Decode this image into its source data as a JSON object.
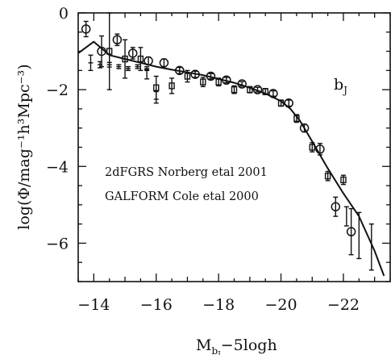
{
  "chart_data": {
    "type": "scatter",
    "title": "",
    "xlabel": "M_bj − 5logh",
    "xlabel_main": "M",
    "xlabel_sub": "b",
    "xlabel_subsub": "J",
    "xlabel_rest": "−5logh",
    "ylabel": "log(Φ/mag⁻¹h³Mpc⁻³)",
    "xlim": [
      -13.5,
      -23.5
    ],
    "ylim": [
      -7,
      0
    ],
    "x_reversed": true,
    "xticks": [
      -14,
      -16,
      -18,
      -20,
      -22
    ],
    "xtick_labels": [
      "−14",
      "−16",
      "−18",
      "−20",
      "−22"
    ],
    "yticks": [
      0,
      -2,
      -4,
      -6
    ],
    "ytick_labels": [
      "0",
      "−2",
      "−4",
      "−6"
    ],
    "band_label": "b",
    "band_label_sub": "J",
    "annotations": [
      "2dFGRS Norberg etal 2001",
      "GALFORM Cole etal 2000"
    ],
    "grid": false,
    "legend": "none",
    "series": [
      {
        "marker": "circle",
        "x": [
          -13.75,
          -14.25,
          -14.75,
          -15.25,
          -15.75,
          -16.25,
          -16.75,
          -17.25,
          -17.75,
          -18.25,
          -18.75,
          -19.25,
          -19.75,
          -20.25,
          -20.75,
          -21.25,
          -21.75,
          -22.25
        ],
        "y": [
          -0.42,
          -1.0,
          -0.7,
          -1.05,
          -1.25,
          -1.3,
          -1.5,
          -1.6,
          -1.65,
          -1.75,
          -1.85,
          -2.0,
          -2.1,
          -2.35,
          -3.0,
          -3.55,
          -5.05,
          -5.7
        ],
        "err": [
          0.2,
          0.4,
          0.15,
          0.15,
          0.1,
          0.1,
          0.08,
          0.08,
          0.07,
          0.07,
          0.06,
          0.06,
          0.07,
          0.08,
          0.1,
          0.15,
          0.25,
          0.6
        ]
      },
      {
        "marker": "hbar",
        "x": [
          -13.9,
          -14.2,
          -14.5,
          -14.8,
          -15.1,
          -15.4,
          -15.7
        ],
        "y": [
          -1.3,
          -1.35,
          -1.35,
          -1.4,
          -1.45,
          -1.4,
          -1.45
        ],
        "err": [
          0.2,
          0.08,
          0.06,
          0.05,
          0.05,
          0.05,
          0.05
        ]
      },
      {
        "marker": "square",
        "x": [
          -14.5,
          -15.0,
          -15.5,
          -16.0,
          -16.5,
          -17.0,
          -17.5,
          -18.0,
          -18.5,
          -19.0,
          -19.5,
          -20.0,
          -20.5,
          -21.0,
          -21.5,
          -22.0
        ],
        "y": [
          -1.0,
          -1.2,
          -1.2,
          -1.95,
          -1.9,
          -1.65,
          -1.8,
          -1.8,
          -2.0,
          -2.0,
          -2.05,
          -2.35,
          -2.75,
          -3.5,
          -4.25,
          -4.35
        ],
        "err": [
          1.0,
          0.5,
          0.3,
          0.3,
          0.2,
          0.15,
          0.12,
          0.1,
          0.1,
          0.08,
          0.08,
          0.08,
          0.1,
          0.12,
          0.12,
          0.12
        ]
      },
      {
        "marker": "bar_only",
        "x": [
          -16.0,
          -15.7,
          -22.1,
          -22.5,
          -22.9
        ],
        "y": [
          -2.2,
          -1.6,
          -5.3,
          -5.8,
          -6.1
        ],
        "err": [
          0.15,
          0.12,
          0.25,
          0.6,
          0.6
        ]
      }
    ],
    "model_line": {
      "x": [
        -13.5,
        -14.0,
        -14.5,
        -15.0,
        -15.5,
        -16.0,
        -16.5,
        -17.0,
        -17.5,
        -18.0,
        -18.5,
        -19.0,
        -19.5,
        -20.0,
        -20.3,
        -20.6,
        -21.0,
        -21.5,
        -22.0,
        -22.5,
        -23.0,
        -23.3
      ],
      "y": [
        -1.05,
        -0.75,
        -1.1,
        -1.2,
        -1.3,
        -1.4,
        -1.48,
        -1.55,
        -1.62,
        -1.72,
        -1.82,
        -1.95,
        -2.1,
        -2.3,
        -2.5,
        -2.8,
        -3.35,
        -4.05,
        -4.7,
        -5.3,
        -6.2,
        -6.85
      ]
    }
  }
}
